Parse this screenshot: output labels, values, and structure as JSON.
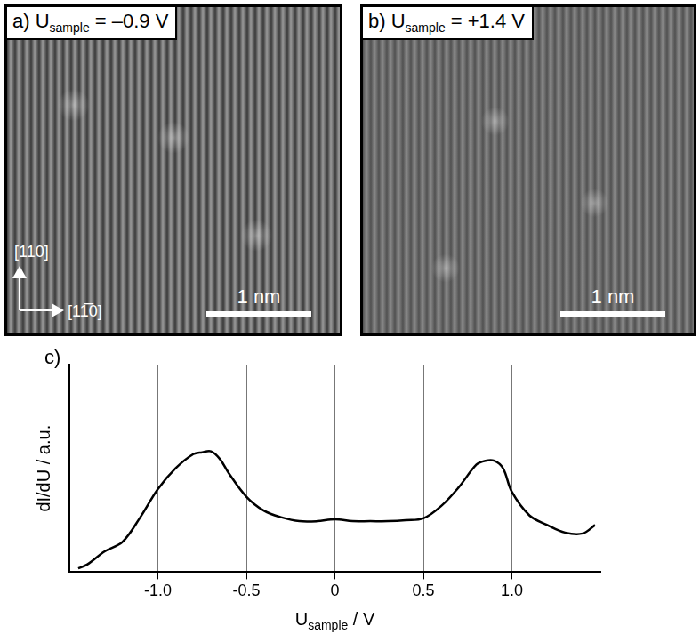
{
  "panels": [
    {
      "label": "a)",
      "symbol": "U",
      "subscript": "sample",
      "value_text": "= –0.9 V",
      "directions": [
        "[110]",
        "[11̅0]"
      ],
      "scale_bar": "1 nm"
    },
    {
      "label": "b)",
      "symbol": "U",
      "subscript": "sample",
      "value_text": "= +1.4 V",
      "scale_bar": "1 nm"
    }
  ],
  "chart_data": {
    "type": "line",
    "title": "c)",
    "xlabel": {
      "symbol": "U",
      "subscript": "sample",
      "suffix": "/ V"
    },
    "ylabel": "dI/dU / a.u.",
    "x": [
      -1.45,
      -1.4,
      -1.3,
      -1.2,
      -1.1,
      -1.0,
      -0.9,
      -0.8,
      -0.75,
      -0.7,
      -0.65,
      -0.6,
      -0.5,
      -0.4,
      -0.3,
      -0.2,
      -0.1,
      0,
      0.1,
      0.2,
      0.3,
      0.4,
      0.5,
      0.6,
      0.7,
      0.8,
      0.85,
      0.9,
      0.95,
      1.0,
      1.1,
      1.2,
      1.3,
      1.4,
      1.47
    ],
    "series": [
      {
        "name": "dI/dU",
        "color": "#000000",
        "values": [
          0.02,
          0.04,
          0.11,
          0.16,
          0.29,
          0.44,
          0.55,
          0.625,
          0.635,
          0.64,
          0.6,
          0.525,
          0.4,
          0.325,
          0.29,
          0.27,
          0.27,
          0.28,
          0.27,
          0.27,
          0.27,
          0.275,
          0.285,
          0.35,
          0.45,
          0.57,
          0.59,
          0.59,
          0.55,
          0.425,
          0.3,
          0.25,
          0.21,
          0.205,
          0.25
        ]
      }
    ],
    "xlim": [
      -1.5,
      1.5
    ],
    "xticks": [
      {
        "value": -1.0,
        "label": "-1.0"
      },
      {
        "value": -0.5,
        "label": "-0.5"
      },
      0,
      {
        "value": 0.5,
        "label": "0.5"
      },
      {
        "value": 1.0,
        "label": "1.0"
      }
    ],
    "ylim": [
      0,
      1.1
    ],
    "grid": true,
    "tick_labels": "x"
  }
}
